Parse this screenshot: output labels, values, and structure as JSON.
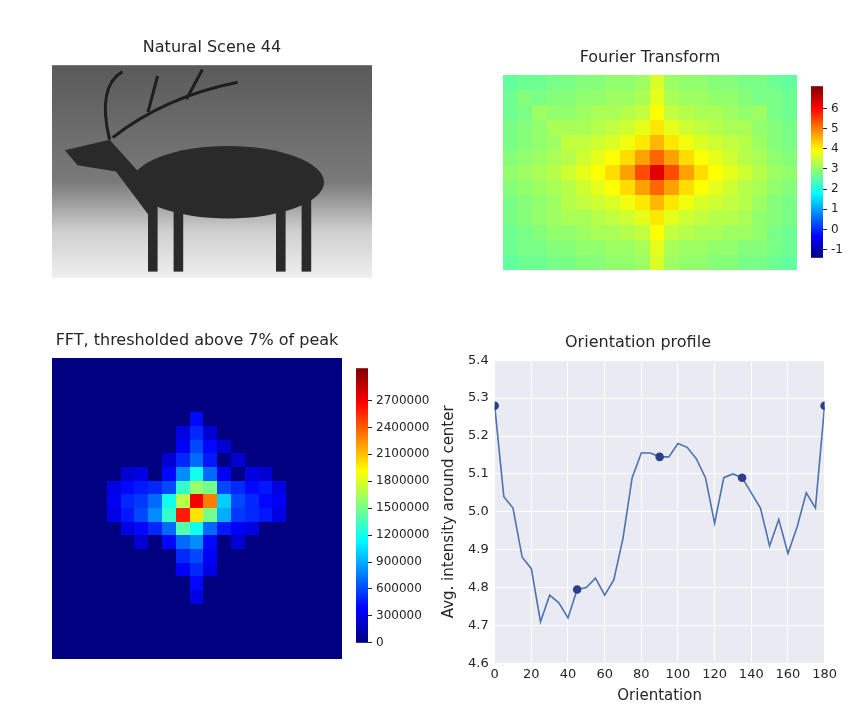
{
  "chart_data": [
    {
      "type": "image",
      "title": "Natural Scene 44",
      "tick_labels": false
    },
    {
      "type": "heatmap",
      "title": "Fourier Transform",
      "tick_labels": false,
      "cells": [
        [
          2.6,
          2.7,
          2.7,
          2.8,
          2.8,
          2.9,
          2.9,
          3.0,
          3.0,
          3.1,
          3.6,
          3.1,
          3.0,
          3.0,
          2.9,
          2.9,
          2.8,
          2.8,
          2.7,
          2.6
        ],
        [
          2.7,
          2.9,
          2.8,
          2.9,
          2.9,
          3.0,
          3.0,
          3.1,
          3.1,
          3.2,
          3.7,
          3.2,
          3.1,
          3.1,
          3.0,
          3.0,
          2.9,
          2.8,
          2.8,
          2.7
        ],
        [
          2.7,
          2.8,
          3.1,
          3.0,
          3.0,
          3.1,
          3.2,
          3.2,
          3.3,
          3.4,
          3.9,
          3.4,
          3.3,
          3.2,
          3.2,
          3.1,
          3.0,
          3.1,
          2.8,
          2.7
        ],
        [
          2.8,
          2.9,
          3.0,
          3.2,
          3.2,
          3.2,
          3.3,
          3.4,
          3.5,
          3.7,
          4.1,
          3.7,
          3.5,
          3.4,
          3.3,
          3.2,
          3.2,
          3.0,
          2.9,
          2.8
        ],
        [
          2.8,
          2.9,
          3.0,
          3.1,
          3.4,
          3.4,
          3.5,
          3.6,
          3.8,
          4.1,
          4.5,
          4.1,
          3.8,
          3.6,
          3.5,
          3.4,
          3.3,
          3.1,
          2.9,
          2.8
        ],
        [
          2.9,
          3.0,
          3.1,
          3.2,
          3.3,
          3.5,
          3.7,
          3.9,
          4.2,
          4.7,
          5.2,
          4.7,
          4.2,
          3.9,
          3.7,
          3.5,
          3.3,
          3.2,
          3.0,
          2.9
        ],
        [
          3.0,
          3.1,
          3.2,
          3.3,
          3.5,
          3.7,
          3.9,
          4.2,
          4.7,
          5.4,
          6.3,
          5.4,
          4.7,
          4.2,
          3.9,
          3.7,
          3.5,
          3.3,
          3.1,
          3.0
        ],
        [
          2.9,
          3.0,
          3.1,
          3.2,
          3.3,
          3.5,
          3.7,
          3.9,
          4.2,
          4.7,
          5.2,
          4.7,
          4.2,
          3.9,
          3.7,
          3.5,
          3.3,
          3.2,
          3.0,
          2.9
        ],
        [
          2.8,
          2.9,
          3.0,
          3.1,
          3.3,
          3.4,
          3.5,
          3.6,
          3.8,
          4.1,
          4.5,
          4.1,
          3.8,
          3.6,
          3.5,
          3.4,
          3.3,
          3.1,
          2.9,
          2.8
        ],
        [
          2.8,
          2.9,
          3.0,
          3.1,
          3.2,
          3.2,
          3.3,
          3.4,
          3.5,
          3.7,
          4.1,
          3.7,
          3.5,
          3.4,
          3.3,
          3.3,
          3.2,
          3.0,
          2.9,
          2.8
        ],
        [
          2.7,
          2.8,
          2.9,
          3.0,
          3.0,
          3.1,
          3.2,
          3.2,
          3.3,
          3.4,
          3.9,
          3.4,
          3.3,
          3.2,
          3.2,
          3.1,
          3.1,
          3.0,
          2.8,
          2.7
        ],
        [
          2.7,
          2.8,
          2.8,
          2.9,
          2.9,
          3.0,
          3.0,
          3.1,
          3.1,
          3.2,
          3.7,
          3.2,
          3.1,
          3.1,
          3.0,
          3.0,
          2.9,
          2.9,
          2.8,
          2.7
        ],
        [
          2.6,
          2.7,
          2.7,
          2.8,
          2.8,
          2.9,
          2.9,
          3.0,
          3.0,
          3.1,
          3.6,
          3.1,
          3.0,
          3.0,
          2.9,
          2.9,
          2.8,
          2.8,
          2.7,
          2.6
        ]
      ],
      "colorbar_range": [
        -1.4,
        7.1
      ],
      "colorbar_ticks": [
        -1,
        0,
        1,
        2,
        3,
        4,
        5,
        6
      ]
    },
    {
      "type": "heatmap",
      "title": "FFT, thresholded above 7% of peak",
      "tick_labels": false,
      "cells": [
        [
          0,
          0,
          0,
          0,
          0,
          0,
          0,
          0,
          0,
          0,
          0,
          0,
          0,
          0,
          0,
          0,
          0,
          0,
          0,
          0,
          0
        ],
        [
          0,
          0,
          0,
          0,
          0,
          0,
          0,
          0,
          0,
          0,
          0,
          0,
          0,
          0,
          0,
          0,
          0,
          0,
          0,
          0,
          0
        ],
        [
          0,
          0,
          0,
          0,
          0,
          0,
          0,
          0,
          0,
          0,
          0,
          0,
          0,
          0,
          0,
          0,
          0,
          0,
          0,
          0,
          0
        ],
        [
          0,
          0,
          0,
          0,
          0,
          0,
          0,
          0,
          0,
          0,
          0,
          0,
          0,
          0,
          0,
          0,
          0,
          0,
          0,
          0,
          0
        ],
        [
          0,
          0,
          0,
          0,
          0,
          0,
          0,
          0,
          0,
          0,
          400000,
          0,
          0,
          0,
          0,
          0,
          0,
          0,
          0,
          0,
          0
        ],
        [
          0,
          0,
          0,
          0,
          0,
          0,
          0,
          0,
          0,
          300000,
          500000,
          250000,
          0,
          0,
          0,
          0,
          0,
          0,
          0,
          0,
          0
        ],
        [
          0,
          0,
          0,
          0,
          0,
          0,
          0,
          0,
          0,
          350000,
          600000,
          400000,
          250000,
          0,
          0,
          0,
          0,
          0,
          0,
          0,
          0
        ],
        [
          0,
          0,
          0,
          0,
          0,
          0,
          0,
          0,
          250000,
          500000,
          700000,
          450000,
          0,
          250000,
          0,
          0,
          0,
          0,
          0,
          0,
          0
        ],
        [
          0,
          0,
          0,
          0,
          0,
          250000,
          300000,
          0,
          400000,
          800000,
          1200000,
          700000,
          350000,
          0,
          300000,
          250000,
          0,
          0,
          0,
          0,
          0
        ],
        [
          0,
          0,
          0,
          0,
          300000,
          400000,
          450000,
          500000,
          600000,
          1300000,
          1600000,
          1500000,
          600000,
          500000,
          400000,
          450000,
          300000,
          0,
          0,
          0,
          0
        ],
        [
          0,
          0,
          0,
          0,
          350000,
          500000,
          550000,
          700000,
          1200000,
          1700000,
          2700000,
          2300000,
          1000000,
          600000,
          500000,
          400000,
          350000,
          0,
          0,
          0,
          0
        ],
        [
          0,
          0,
          0,
          0,
          300000,
          450000,
          600000,
          800000,
          1300000,
          2600000,
          2000000,
          1500000,
          900000,
          550000,
          500000,
          450000,
          300000,
          0,
          0,
          0,
          0
        ],
        [
          0,
          0,
          0,
          0,
          0,
          300000,
          400000,
          500000,
          700000,
          1400000,
          1200000,
          700000,
          450000,
          350000,
          300000,
          0,
          0,
          0,
          0,
          0,
          0
        ],
        [
          0,
          0,
          0,
          0,
          0,
          0,
          250000,
          0,
          400000,
          700000,
          800000,
          400000,
          0,
          250000,
          0,
          0,
          0,
          0,
          0,
          0,
          0
        ],
        [
          0,
          0,
          0,
          0,
          0,
          0,
          0,
          0,
          0,
          500000,
          600000,
          350000,
          0,
          0,
          0,
          0,
          0,
          0,
          0,
          0,
          0
        ],
        [
          0,
          0,
          0,
          0,
          0,
          0,
          0,
          0,
          0,
          350000,
          500000,
          300000,
          0,
          0,
          0,
          0,
          0,
          0,
          0,
          0,
          0
        ],
        [
          0,
          0,
          0,
          0,
          0,
          0,
          0,
          0,
          0,
          0,
          400000,
          0,
          0,
          0,
          0,
          0,
          0,
          0,
          0,
          0,
          0
        ],
        [
          0,
          0,
          0,
          0,
          0,
          0,
          0,
          0,
          0,
          0,
          300000,
          0,
          0,
          0,
          0,
          0,
          0,
          0,
          0,
          0,
          0
        ],
        [
          0,
          0,
          0,
          0,
          0,
          0,
          0,
          0,
          0,
          0,
          0,
          0,
          0,
          0,
          0,
          0,
          0,
          0,
          0,
          0,
          0
        ],
        [
          0,
          0,
          0,
          0,
          0,
          0,
          0,
          0,
          0,
          0,
          0,
          0,
          0,
          0,
          0,
          0,
          0,
          0,
          0,
          0,
          0
        ],
        [
          0,
          0,
          0,
          0,
          0,
          0,
          0,
          0,
          0,
          0,
          0,
          0,
          0,
          0,
          0,
          0,
          0,
          0,
          0,
          0,
          0
        ],
        [
          0,
          0,
          0,
          0,
          0,
          0,
          0,
          0,
          0,
          0,
          0,
          0,
          0,
          0,
          0,
          0,
          0,
          0,
          0,
          0,
          0
        ]
      ],
      "colorbar_range": [
        0,
        3060000
      ],
      "colorbar_ticks": [
        0,
        300000,
        600000,
        900000,
        1200000,
        1500000,
        1800000,
        2100000,
        2400000,
        2700000
      ]
    },
    {
      "type": "line",
      "title": "Orientation profile",
      "x_label": "Orientation",
      "y_label": "Avg. intensity around center",
      "x": [
        0,
        5,
        10,
        15,
        20,
        25,
        30,
        35,
        40,
        45,
        50,
        55,
        60,
        65,
        70,
        75,
        80,
        85,
        90,
        95,
        100,
        105,
        110,
        115,
        120,
        125,
        130,
        135,
        140,
        145,
        150,
        155,
        160,
        165,
        170,
        175,
        180
      ],
      "series": [
        {
          "color": "#4c72b0",
          "marker": "none",
          "line_style": "solid",
          "values": [
            5.28,
            5.04,
            5.01,
            4.88,
            4.85,
            4.71,
            4.78,
            4.76,
            4.72,
            4.795,
            4.8,
            4.825,
            4.78,
            4.82,
            4.93,
            5.09,
            5.155,
            5.155,
            5.145,
            5.145,
            5.18,
            5.17,
            5.14,
            5.09,
            4.97,
            5.09,
            5.1,
            5.09,
            5.05,
            5.01,
            4.91,
            4.98,
            4.89,
            4.96,
            5.05,
            5.01,
            5.28
          ]
        },
        {
          "type": "scatter",
          "color": "#2b3f8c",
          "marker": "circle",
          "x": [
            0,
            45,
            90,
            135,
            180
          ],
          "values": [
            5.28,
            4.795,
            5.145,
            5.09,
            5.28
          ]
        }
      ],
      "xlim": [
        0,
        180
      ],
      "xticks": [
        0,
        20,
        40,
        60,
        80,
        100,
        120,
        140,
        160,
        180
      ],
      "ylim": [
        4.6,
        5.4
      ],
      "yticks": [
        4.6,
        4.7,
        4.8,
        4.9,
        {
          "value": 5,
          "label": "5.0"
        },
        5.1,
        5.2,
        5.3,
        5.4
      ],
      "grid": true
    }
  ]
}
